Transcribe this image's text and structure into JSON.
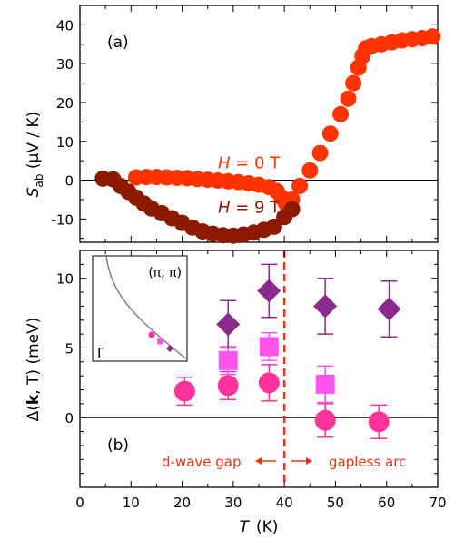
{
  "chart_data": [
    {
      "type": "scatter",
      "panel_label": "(a)",
      "ylabel_main": "S",
      "ylabel_sub": "ab",
      "ylabel_unit": "(μV / K)",
      "xlim": [
        0,
        70
      ],
      "ylim": [
        -16,
        45
      ],
      "yticks": [
        "-10",
        "0",
        "10",
        "20",
        "30",
        "40"
      ],
      "ytick_values": [
        -10,
        0,
        10,
        20,
        30,
        40
      ],
      "zero_line": true,
      "annotations": [
        {
          "italic": "H",
          "rest": " = 0 T",
          "color": "#ff3300",
          "x": 27,
          "y": 4.5
        },
        {
          "italic": "H",
          "rest": " = 9 T",
          "color": "#8a1500",
          "x": 27,
          "y": -7
        }
      ],
      "series": [
        {
          "key": "H0",
          "color": "#ff3300",
          "points": [
            [
              11,
              0.7
            ],
            [
              13,
              0.8
            ],
            [
              15,
              0.8
            ],
            [
              17,
              0.7
            ],
            [
              19,
              0.6
            ],
            [
              21,
              0.5
            ],
            [
              23,
              0.3
            ],
            [
              25,
              0.1
            ],
            [
              27,
              -0.1
            ],
            [
              29,
              -0.3
            ],
            [
              31,
              -0.5
            ],
            [
              33,
              -0.8
            ],
            [
              35,
              -1.2
            ],
            [
              37,
              -1.8
            ],
            [
              38.5,
              -2.8
            ],
            [
              39.5,
              -4.5
            ],
            [
              40.3,
              -6.0
            ],
            [
              41.5,
              -5.0
            ],
            [
              43,
              -1.5
            ],
            [
              45,
              2.5
            ],
            [
              47,
              7
            ],
            [
              49,
              12
            ],
            [
              51,
              17
            ],
            [
              52.5,
              21
            ],
            [
              53.5,
              25
            ],
            [
              54.5,
              29
            ],
            [
              55.3,
              32
            ],
            [
              56,
              34
            ],
            [
              57,
              34.5
            ],
            [
              59,
              35
            ],
            [
              61,
              35.5
            ],
            [
              63,
              36
            ],
            [
              65,
              36.3
            ],
            [
              67,
              36.6
            ],
            [
              69,
              37
            ]
          ]
        },
        {
          "key": "H9",
          "color": "#8b1a00",
          "points": [
            [
              4.5,
              0.4
            ],
            [
              6.5,
              0.2
            ],
            [
              8,
              -1.5
            ],
            [
              9.5,
              -3
            ],
            [
              11,
              -4.5
            ],
            [
              12.5,
              -6
            ],
            [
              14,
              -7.3
            ],
            [
              16,
              -8.5
            ],
            [
              18,
              -9.8
            ],
            [
              20,
              -11
            ],
            [
              22,
              -12.2
            ],
            [
              24,
              -13.2
            ],
            [
              26,
              -13.8
            ],
            [
              28,
              -14.2
            ],
            [
              30,
              -14.3
            ],
            [
              32,
              -14.0
            ],
            [
              34,
              -13.5
            ],
            [
              36,
              -12.8
            ],
            [
              38,
              -12.0
            ],
            [
              40,
              -9.5
            ],
            [
              41.5,
              -7.5
            ]
          ]
        }
      ]
    },
    {
      "type": "scatter",
      "panel_label": "(b)",
      "ylabel": "Δ(k, T)  (meV)",
      "ylabel_pre": "Δ(",
      "ylabel_bold": "k",
      "ylabel_post": ", T)  (meV)",
      "xlabel_italic": "T",
      "xlabel_unit": "(K)",
      "xlim": [
        0,
        70
      ],
      "ylim": [
        -5,
        12
      ],
      "xticks": [
        "0",
        "10",
        "20",
        "30",
        "40",
        "50",
        "60",
        "70"
      ],
      "xtick_values": [
        0,
        10,
        20,
        30,
        40,
        50,
        60,
        70
      ],
      "yticks": [
        "0",
        "5",
        "10"
      ],
      "ytick_values": [
        0,
        5,
        10
      ],
      "zero_line": true,
      "vline_x": 40,
      "region_labels": [
        {
          "text": "d-wave gap",
          "color": "#ee3311"
        },
        {
          "text": "gapless arc",
          "color": "#ee3311"
        }
      ],
      "series": [
        {
          "key": "circles",
          "marker": "circle",
          "color": "#ff3399",
          "points": [
            [
              20.5,
              1.9,
              1.0
            ],
            [
              29,
              2.3,
              1.0
            ],
            [
              37,
              2.5,
              1.3
            ],
            [
              48,
              -0.2,
              1.2
            ],
            [
              58.5,
              -0.3,
              1.2
            ]
          ]
        },
        {
          "key": "squares",
          "marker": "square",
          "color": "#ff55ee",
          "points": [
            [
              29,
              4.1,
              1.0
            ],
            [
              37,
              5.1,
              1.0
            ],
            [
              48,
              2.4,
              1.3
            ]
          ]
        },
        {
          "key": "diamonds",
          "marker": "diamond",
          "color": "#8a2a8a",
          "points": [
            [
              29,
              6.7,
              1.7
            ],
            [
              37,
              9.1,
              1.9
            ],
            [
              48,
              8.0,
              2.0
            ],
            [
              60.5,
              7.8,
              2.0
            ]
          ]
        }
      ],
      "inset": {
        "corner_label": "(π, π)",
        "origin_label": "Γ",
        "markers": [
          {
            "marker": "circle",
            "color": "#ff3399"
          },
          {
            "marker": "square",
            "color": "#ff55ee"
          },
          {
            "marker": "diamond",
            "color": "#8a2a8a"
          }
        ]
      }
    }
  ]
}
